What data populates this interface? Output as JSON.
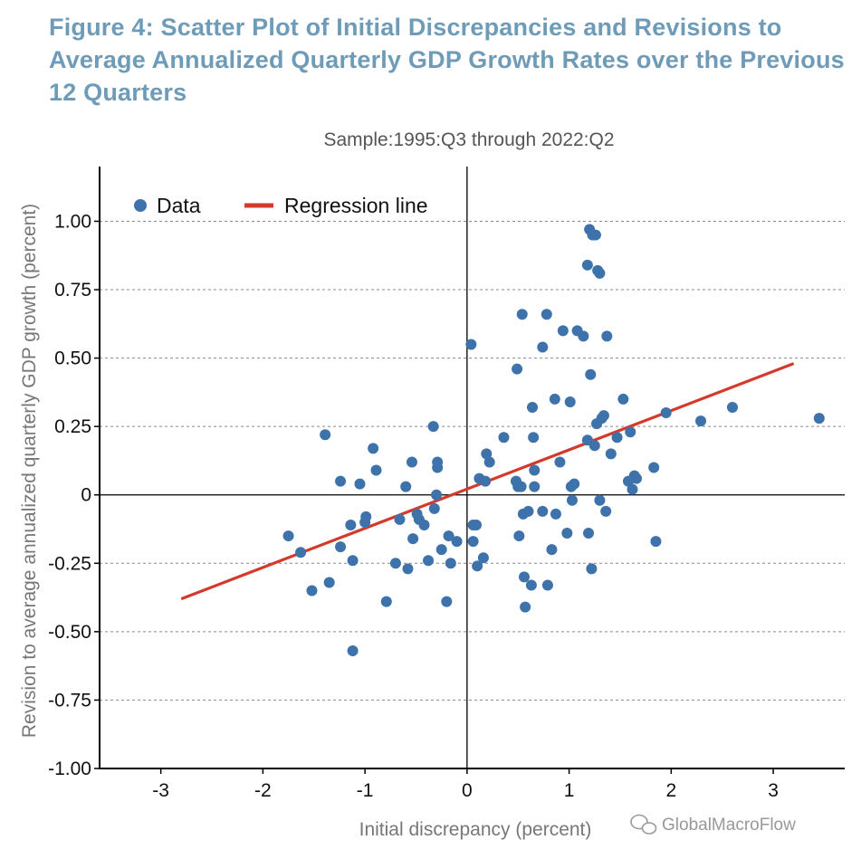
{
  "figure": {
    "title": "Figure 4: Scatter Plot of Initial Discrepancies and Revisions to Average Annualized Quarterly GDP Growth Rates over the Previous 12 Quarters",
    "subtitle": "Sample:1995:Q3 through 2022:Q2",
    "watermark": "GlobalMacroFlow"
  },
  "chart_data": {
    "type": "scatter",
    "title": "Figure 4: Scatter Plot of Initial Discrepancies and Revisions to Average Annualized Quarterly GDP Growth Rates over the Previous 12 Quarters",
    "subtitle": "Sample:1995:Q3 through 2022:Q2",
    "xlabel": "Initial discrepancy (percent)",
    "ylabel": "Revision to average annualized quarterly GDP growth (percent)",
    "xlim": [
      -3.6,
      3.7
    ],
    "ylim": [
      -1.0,
      1.2
    ],
    "xticks": [
      "-3",
      "-2",
      "-1",
      "0",
      "1",
      "2",
      "3"
    ],
    "xtick_values": [
      -3,
      -2,
      -1,
      0,
      1,
      2,
      3
    ],
    "yticks": [
      "-1.00",
      "-0.75",
      "-0.50",
      "-0.25",
      "0",
      "0.25",
      "0.50",
      "0.75",
      "1.00"
    ],
    "ytick_values": [
      -1.0,
      -0.75,
      -0.5,
      -0.25,
      0,
      0.25,
      0.5,
      0.75,
      1.0
    ],
    "grid": "horizontal dashed",
    "legend_position": "top-left",
    "colors": {
      "data": "#3d72aa",
      "regression": "#d43a2c",
      "title": "#6e9cb8"
    },
    "series": [
      {
        "name": "Data",
        "kind": "points",
        "points": [
          [
            -1.75,
            -0.15
          ],
          [
            -1.63,
            -0.21
          ],
          [
            -1.52,
            -0.35
          ],
          [
            -1.39,
            0.22
          ],
          [
            -1.35,
            -0.32
          ],
          [
            -1.24,
            0.05
          ],
          [
            -1.24,
            -0.19
          ],
          [
            -1.14,
            -0.11
          ],
          [
            -1.12,
            -0.24
          ],
          [
            -1.12,
            -0.57
          ],
          [
            -1.05,
            0.04
          ],
          [
            -1.0,
            -0.1
          ],
          [
            -0.99,
            -0.08
          ],
          [
            -0.92,
            0.17
          ],
          [
            -0.89,
            0.09
          ],
          [
            -0.79,
            -0.39
          ],
          [
            -0.7,
            -0.25
          ],
          [
            -0.66,
            -0.09
          ],
          [
            -0.6,
            0.03
          ],
          [
            -0.58,
            -0.27
          ],
          [
            -0.54,
            0.12
          ],
          [
            -0.53,
            -0.16
          ],
          [
            -0.49,
            -0.07
          ],
          [
            -0.47,
            -0.09
          ],
          [
            -0.42,
            -0.11
          ],
          [
            -0.38,
            -0.24
          ],
          [
            -0.33,
            0.25
          ],
          [
            -0.32,
            -0.05
          ],
          [
            -0.3,
            0.0
          ],
          [
            -0.29,
            0.1
          ],
          [
            -0.29,
            0.12
          ],
          [
            -0.25,
            -0.2
          ],
          [
            -0.2,
            -0.39
          ],
          [
            -0.18,
            -0.15
          ],
          [
            -0.16,
            -0.25
          ],
          [
            -0.1,
            -0.17
          ],
          [
            0.04,
            0.55
          ],
          [
            0.06,
            -0.11
          ],
          [
            0.06,
            -0.17
          ],
          [
            0.09,
            -0.11
          ],
          [
            0.1,
            -0.26
          ],
          [
            0.12,
            0.06
          ],
          [
            0.16,
            -0.23
          ],
          [
            0.18,
            0.05
          ],
          [
            0.19,
            0.15
          ],
          [
            0.22,
            0.12
          ],
          [
            0.36,
            0.21
          ],
          [
            0.48,
            0.05
          ],
          [
            0.49,
            0.46
          ],
          [
            0.5,
            0.03
          ],
          [
            0.51,
            -0.15
          ],
          [
            0.53,
            0.03
          ],
          [
            0.54,
            0.66
          ],
          [
            0.55,
            -0.07
          ],
          [
            0.56,
            -0.3
          ],
          [
            0.57,
            -0.41
          ],
          [
            0.6,
            -0.06
          ],
          [
            0.63,
            -0.33
          ],
          [
            0.64,
            0.32
          ],
          [
            0.65,
            0.21
          ],
          [
            0.66,
            0.09
          ],
          [
            0.66,
            0.03
          ],
          [
            0.74,
            0.54
          ],
          [
            0.74,
            -0.06
          ],
          [
            0.78,
            0.66
          ],
          [
            0.79,
            -0.33
          ],
          [
            0.83,
            -0.2
          ],
          [
            0.86,
            0.35
          ],
          [
            0.87,
            -0.07
          ],
          [
            0.91,
            0.12
          ],
          [
            0.94,
            0.6
          ],
          [
            0.98,
            -0.14
          ],
          [
            1.01,
            0.34
          ],
          [
            1.02,
            0.03
          ],
          [
            1.03,
            -0.02
          ],
          [
            1.05,
            0.04
          ],
          [
            1.08,
            0.6
          ],
          [
            1.14,
            0.58
          ],
          [
            1.18,
            0.84
          ],
          [
            1.18,
            0.2
          ],
          [
            1.19,
            -0.14
          ],
          [
            1.2,
            0.97
          ],
          [
            1.21,
            0.44
          ],
          [
            1.22,
            -0.27
          ],
          [
            1.23,
            0.95
          ],
          [
            1.25,
            0.18
          ],
          [
            1.26,
            0.95
          ],
          [
            1.27,
            0.26
          ],
          [
            1.28,
            0.82
          ],
          [
            1.3,
            0.81
          ],
          [
            1.3,
            -0.02
          ],
          [
            1.32,
            0.28
          ],
          [
            1.34,
            0.29
          ],
          [
            1.36,
            -0.06
          ],
          [
            1.37,
            0.58
          ],
          [
            1.41,
            0.15
          ],
          [
            1.47,
            0.21
          ],
          [
            1.53,
            0.35
          ],
          [
            1.58,
            0.05
          ],
          [
            1.6,
            0.23
          ],
          [
            1.62,
            0.02
          ],
          [
            1.64,
            0.07
          ],
          [
            1.66,
            0.06
          ],
          [
            1.83,
            0.1
          ],
          [
            1.85,
            -0.17
          ],
          [
            1.95,
            0.3
          ],
          [
            2.29,
            0.27
          ],
          [
            2.6,
            0.32
          ],
          [
            3.45,
            0.28
          ]
        ]
      },
      {
        "name": "Regression line",
        "kind": "line",
        "x": [
          -2.8,
          3.2
        ],
        "y": [
          -0.38,
          0.48
        ]
      }
    ]
  }
}
